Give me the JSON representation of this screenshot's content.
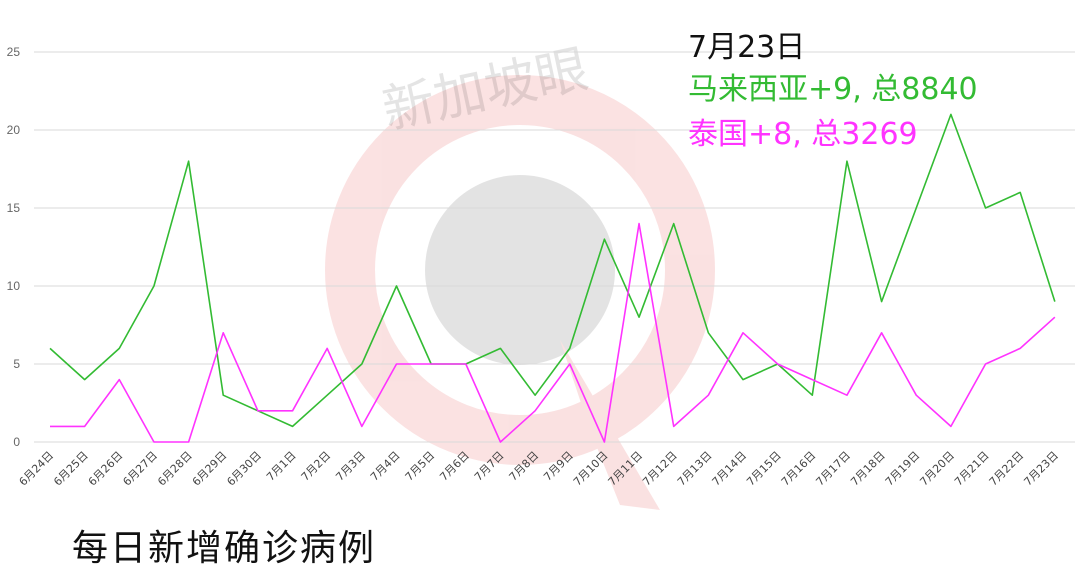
{
  "watermark": {
    "brand_text": "新加坡眼",
    "symbol": "®"
  },
  "annotation": {
    "date": "7月23日",
    "malaysia": "马来西亚+9, 总8840",
    "thailand": "泰国+8, 总3269"
  },
  "caption": "每日新增确诊病例",
  "colors": {
    "malaysia": "#33bb33",
    "thailand": "#ff33ff",
    "grid": "#d9d9d9"
  },
  "chart_data": {
    "type": "line",
    "title": "",
    "xlabel": "",
    "ylabel": "",
    "ylim": [
      0,
      25
    ],
    "yticks": [
      0,
      5,
      10,
      15,
      20,
      25
    ],
    "grid": true,
    "categories": [
      "6月24日",
      "6月25日",
      "6月26日",
      "6月27日",
      "6月28日",
      "6月29日",
      "6月30日",
      "7月1日",
      "7月2日",
      "7月3日",
      "7月4日",
      "7月5日",
      "7月6日",
      "7月7日",
      "7月8日",
      "7月9日",
      "7月10日",
      "7月11日",
      "7月12日",
      "7月13日",
      "7月14日",
      "7月15日",
      "7月16日",
      "7月17日",
      "7月18日",
      "7月19日",
      "7月20日",
      "7月21日",
      "7月22日",
      "7月23日"
    ],
    "series": [
      {
        "key": "malaysia",
        "values": [
          6,
          4,
          6,
          10,
          18,
          3,
          2,
          1,
          3,
          5,
          10,
          5,
          5,
          6,
          3,
          6,
          13,
          8,
          14,
          7,
          4,
          5,
          3,
          18,
          9,
          15,
          21,
          15,
          16,
          9
        ]
      },
      {
        "key": "thailand",
        "values": [
          1,
          1,
          4,
          0,
          0,
          7,
          2,
          2,
          6,
          1,
          5,
          5,
          5,
          0,
          2,
          5,
          0,
          14,
          1,
          3,
          7,
          5,
          4,
          3,
          7,
          3,
          1,
          5,
          6,
          8
        ]
      }
    ]
  }
}
